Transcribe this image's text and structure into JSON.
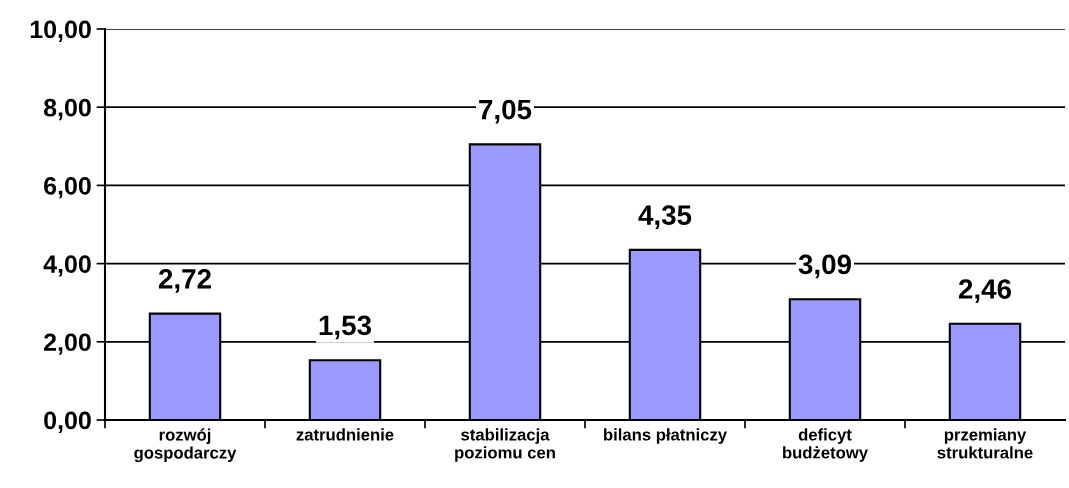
{
  "chart_data": {
    "type": "bar",
    "categories": [
      "rozwój\ngospodarczy",
      "zatrudnienie",
      "stabilizacja\npoziomu cen",
      "bilans płatniczy",
      "deficyt\nbudżetowy",
      "przemiany\nstrukturalne"
    ],
    "values": [
      2.72,
      1.53,
      7.05,
      4.35,
      3.09,
      2.46
    ],
    "value_labels": [
      "2,72",
      "1,53",
      "7,05",
      "4,35",
      "3,09",
      "2,46"
    ],
    "color": "#9999ff",
    "ylim": [
      0,
      10
    ],
    "yticks": [
      {
        "value": 0,
        "label": "0,00"
      },
      {
        "value": 2,
        "label": "2,00"
      },
      {
        "value": 4,
        "label": "4,00"
      },
      {
        "value": 6,
        "label": "6,00"
      },
      {
        "value": 8,
        "label": "8,00"
      },
      {
        "value": 10,
        "label": "10,00"
      }
    ],
    "grid": "y"
  }
}
